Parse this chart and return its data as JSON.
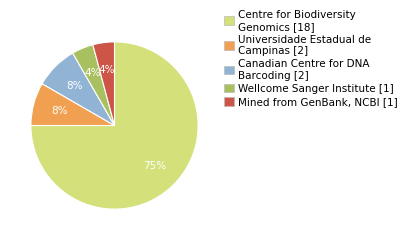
{
  "labels": [
    "Centre for Biodiversity\nGenomics [18]",
    "Universidade Estadual de\nCampinas [2]",
    "Canadian Centre for DNA\nBarcoding [2]",
    "Wellcome Sanger Institute [1]",
    "Mined from GenBank, NCBI [1]"
  ],
  "values": [
    18,
    2,
    2,
    1,
    1
  ],
  "colors": [
    "#d4e079",
    "#f0a050",
    "#92b4d4",
    "#a8c060",
    "#cc5548"
  ],
  "background_color": "#ffffff",
  "text_color": "#ffffff",
  "fontsize": 7.5,
  "legend_fontsize": 7.5
}
